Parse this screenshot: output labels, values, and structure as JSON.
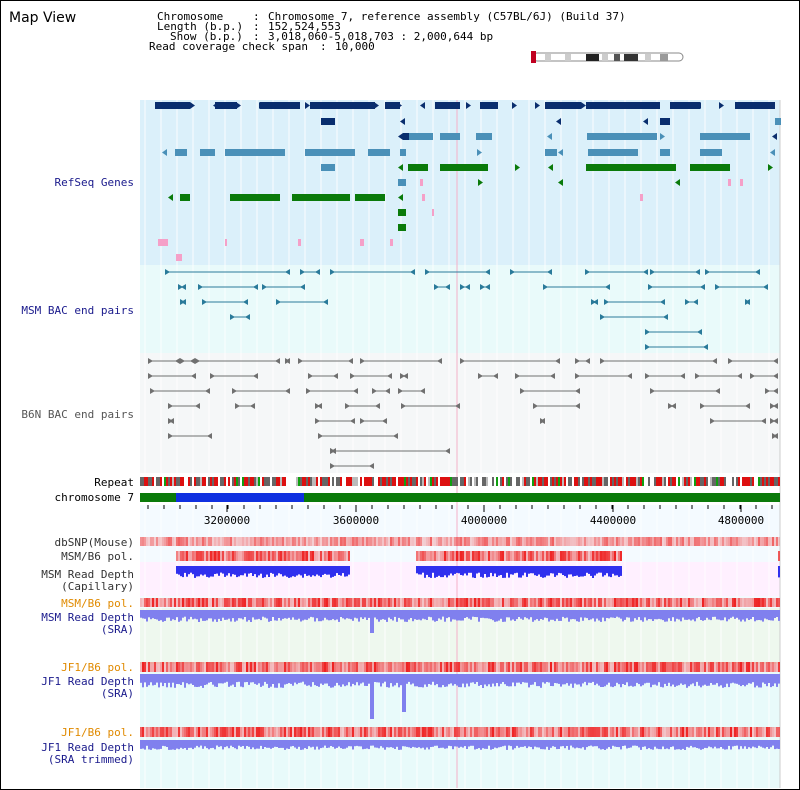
{
  "window": {
    "title": "Map View"
  },
  "info": {
    "chromosome_label": "Chromosome",
    "chromosome_value": "Chromosome 7, reference assembly (C57BL/6J) (Build 37)",
    "length_label": "Length (b.p.)",
    "length_value": "152,524,553",
    "show_label": "Show (b.p.)",
    "show_value": "3,018,060-5,018,703 : 2,000,644 bp",
    "coverage_label": "Read coverage check span",
    "coverage_value": "10,000"
  },
  "tracks": {
    "refseq": "RefSeq Genes",
    "msm_bac": "MSM BAC end pairs",
    "b6n_bac": "B6N BAC end pairs",
    "repeat": "Repeat",
    "chromosome": "chromosome 7",
    "dbsnp": "dbSNP(Mouse)",
    "msm_pol_1": "MSM/B6 pol.",
    "msm_depth_cap_1": "MSM Read Depth",
    "msm_depth_cap_2": "(Capillary)",
    "msm_pol_2": "MSM/B6 pol.",
    "msm_depth_sra_1": "MSM Read Depth",
    "msm_depth_sra_2": "(SRA)",
    "jf1_pol_1": "JF1/B6 pol.",
    "jf1_depth_sra_1": "JF1 Read Depth",
    "jf1_depth_sra_2": "(SRA)",
    "jf1_pol_2": "JF1/B6 pol.",
    "jf1_depth_trim_1": "JF1 Read Depth",
    "jf1_depth_trim_2": "(SRA trimmed)"
  },
  "axis": {
    "ticks": [
      "3200000",
      "3600000",
      "4000000",
      "4400000",
      "4800000"
    ]
  },
  "colors": {
    "refseq_bg": "#dbf0fa",
    "bac_bg": "#e9fafa",
    "b6n_bg": "#f5f7f8",
    "gene_navy": "#0a2e6e",
    "gene_steel": "#4a90b8",
    "gene_green": "#0a7a0a",
    "gene_pink": "#f5a0c8",
    "bac_msm": "#2a7a9a",
    "bac_b6n": "#707070",
    "chrom_green": "#0a7a0a",
    "chrom_blue": "#1030e0",
    "depth_blue": "#3030ee",
    "depth_light": "#8080ee",
    "pol_red": "#ee2020"
  }
}
